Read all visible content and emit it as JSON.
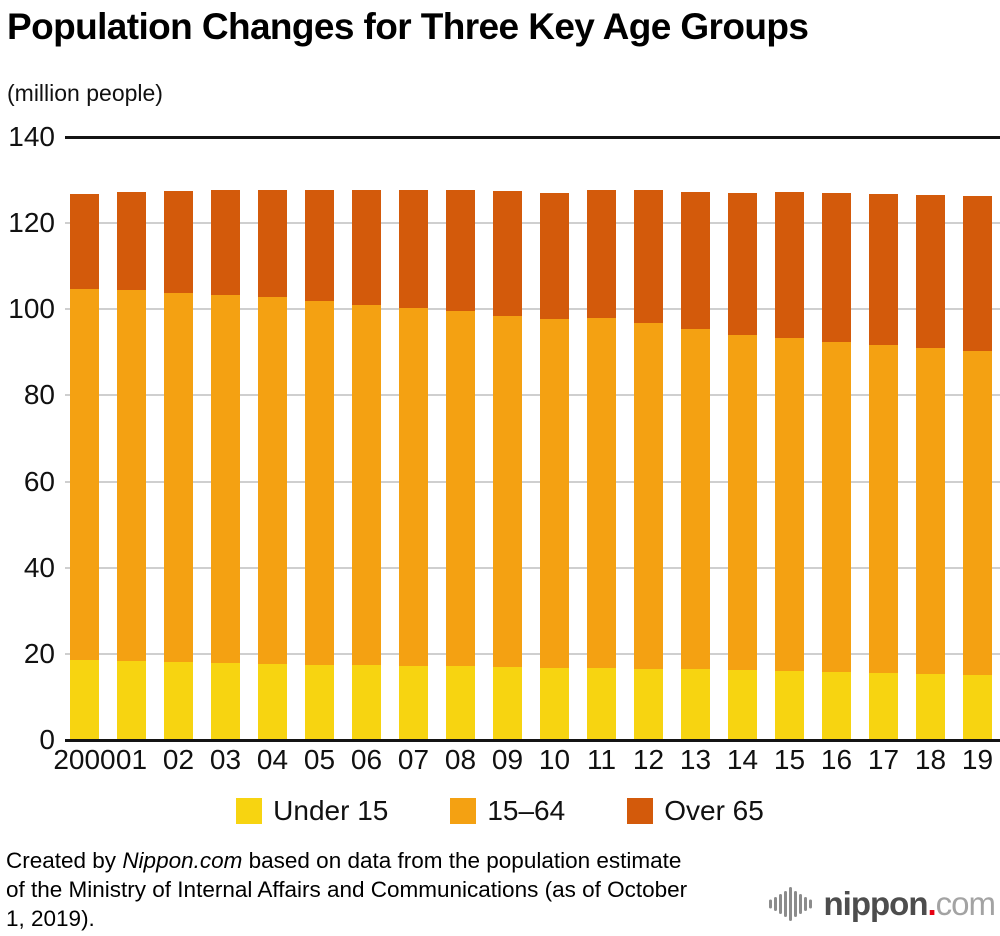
{
  "chart_data": {
    "type": "bar",
    "stacked": true,
    "title": "Population Changes for Three Key Age Groups",
    "ylabel": "(million people)",
    "xlabel": "",
    "ylim": [
      0,
      140
    ],
    "yticks": [
      0,
      20,
      40,
      60,
      80,
      100,
      120,
      140
    ],
    "grid": "horizontal",
    "legend_position": "bottom",
    "categories": [
      "2000",
      "01",
      "02",
      "03",
      "04",
      "05",
      "06",
      "07",
      "08",
      "09",
      "10",
      "11",
      "12",
      "13",
      "14",
      "15",
      "16",
      "17",
      "18",
      "19"
    ],
    "series": [
      {
        "name": "Under 15",
        "color": "#F7D411",
        "values": [
          18.5,
          18.3,
          18.1,
          17.9,
          17.7,
          17.5,
          17.4,
          17.3,
          17.2,
          17.0,
          16.8,
          16.7,
          16.6,
          16.4,
          16.2,
          16.0,
          15.8,
          15.6,
          15.4,
          15.2
        ]
      },
      {
        "name": "15–64",
        "color": "#F4A112",
        "values": [
          86.2,
          86.1,
          85.7,
          85.4,
          85.1,
          84.4,
          83.7,
          83.0,
          82.3,
          81.5,
          81.0,
          81.3,
          80.2,
          79.0,
          77.9,
          77.3,
          76.6,
          76.0,
          75.5,
          75.1
        ]
      },
      {
        "name": "Over 65",
        "color": "#D35A0B",
        "values": [
          22.0,
          22.9,
          23.6,
          24.3,
          24.9,
          25.8,
          26.6,
          27.5,
          28.2,
          29.0,
          29.3,
          29.8,
          30.8,
          31.9,
          33.0,
          33.9,
          34.6,
          35.2,
          35.6,
          35.9
        ]
      }
    ],
    "colors": {
      "grid": "#cfcfcf",
      "axis": "#141414"
    }
  },
  "footer": {
    "prefix": "Created by ",
    "brand": "Nippon.com",
    "suffix_line1": " based on data from the population estimate",
    "line2": "of the Ministry of Internal Affairs and Communications (as of October",
    "line3": "1, 2019)."
  },
  "logo": {
    "icon": "soundwave-icon",
    "name": "nippon",
    "dot": ".",
    "domain": "com",
    "name_color": "#4d4d4d",
    "dot_color": "#e60012",
    "domain_color": "#a3a3a3"
  }
}
